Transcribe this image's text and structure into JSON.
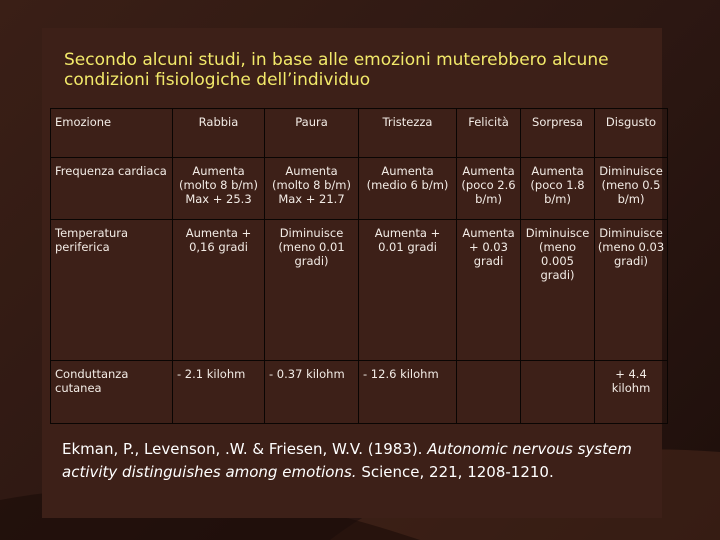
{
  "title": "Secondo alcuni studi, in base alle emozioni muterebbero alcune condizioni fisiologiche dell’individuo",
  "table": {
    "header": [
      "Emozione",
      "Rabbia",
      "Paura",
      "Tristezza",
      "Felicità",
      "Sorpresa",
      "Disgusto"
    ],
    "rows": [
      {
        "label": "Frequenza cardiaca",
        "cells": [
          "Aumenta (molto 8 b/m) Max + 25.3",
          "Aumenta (molto 8 b/m) Max + 21.7",
          "Aumenta (medio 6 b/m)",
          "Aumenta (poco 2.6 b/m)",
          "Aumenta (poco 1.8 b/m)",
          "Diminuisce (meno 0.5 b/m)"
        ]
      },
      {
        "label": "Temperatura periferica",
        "cells": [
          "Aumenta + 0,16 gradi",
          "Diminuisce (meno 0.01 gradi)",
          "Aumenta + 0.01 gradi",
          "Aumenta + 0.03 gradi",
          "Diminuisce (meno 0.005 gradi)",
          "Diminuisce (meno 0.03 gradi)"
        ]
      },
      {
        "label": "Conduttanza cutanea",
        "cells": [
          "- 2.1 kilohm",
          "- 0.37 kilohm",
          "- 12.6 kilohm",
          "",
          "",
          "+ 4.4 kilohm"
        ]
      }
    ]
  },
  "citation": {
    "authors": "Ekman, P., Levenson, .W. & Friesen, W.V. (1983).",
    "title": "Autonomic nervous system activity distinguishes among emotions.",
    "source": "Science, 221, 1208-1210."
  }
}
